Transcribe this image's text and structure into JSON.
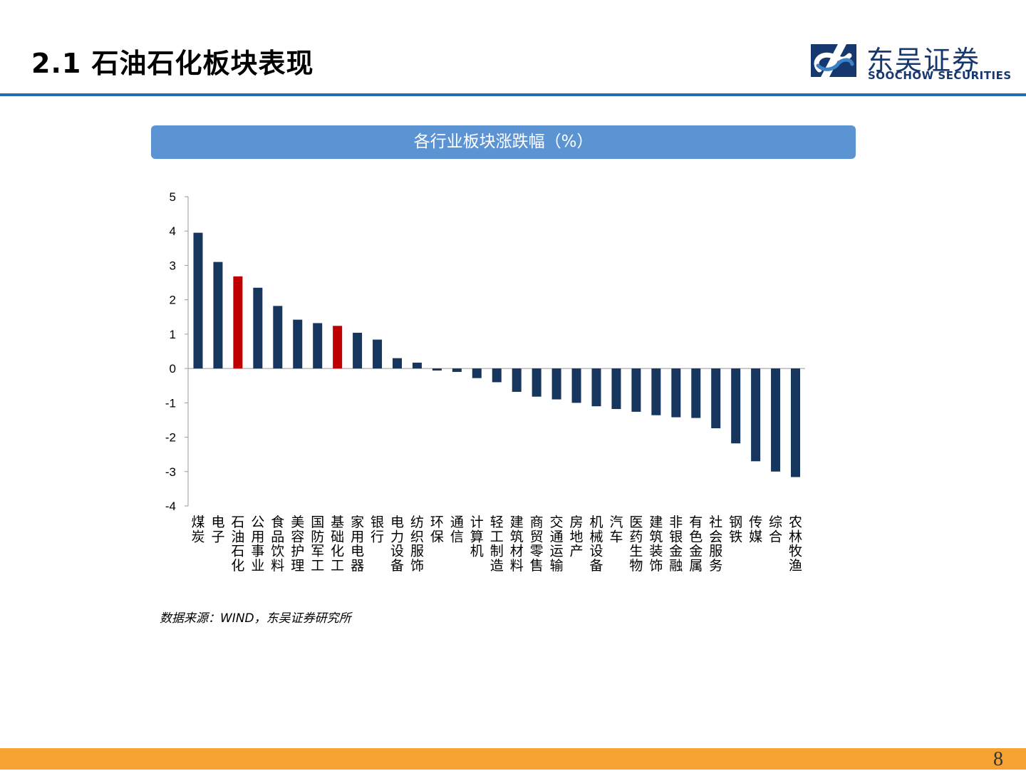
{
  "header": {
    "title": "2.1 石油石化板块表现",
    "logo_cn": "东吴证券",
    "logo_en": "SOOCHOW SECURITIES"
  },
  "chart_banner": "各行业板块涨跌幅（%）",
  "source": "数据来源：WIND，东吴证券研究所",
  "page_number": "8",
  "colors": {
    "bar": "#17365d",
    "highlight": "#c00000",
    "banner": "#5b93d3",
    "header_rule": "#1f6fb5",
    "footer": "#f7a334",
    "logo": "#17386e"
  },
  "chart_data": {
    "type": "bar",
    "categories": [
      "煤炭",
      "电子",
      "石油石化",
      "公用事业",
      "食品饮料",
      "美容护理",
      "国防军工",
      "基础化工",
      "家用电器",
      "银行",
      "电力设备",
      "纺织服饰",
      "环保",
      "通信",
      "计算机",
      "轻工制造",
      "建筑材料",
      "商贸零售",
      "交通运输",
      "房地产",
      "机械设备",
      "汽车",
      "医药生物",
      "建筑装饰",
      "非银金融",
      "有色金属",
      "社会服务",
      "钢铁",
      "传媒",
      "综合",
      "农林牧渔"
    ],
    "values": [
      3.95,
      3.1,
      2.68,
      2.35,
      1.82,
      1.42,
      1.32,
      1.24,
      1.04,
      0.84,
      0.3,
      0.17,
      -0.06,
      -0.1,
      -0.28,
      -0.4,
      -0.68,
      -0.82,
      -0.9,
      -1.0,
      -1.1,
      -1.18,
      -1.26,
      -1.36,
      -1.42,
      -1.44,
      -1.74,
      -2.18,
      -2.7,
      -3.0,
      -3.16
    ],
    "highlight": [
      "石油石化",
      "基础化工"
    ],
    "yticks": [
      5,
      4,
      3,
      2,
      1,
      0,
      -1,
      -2,
      -3,
      -4
    ],
    "ylim": [
      -4,
      5
    ],
    "xlabel": "",
    "ylabel": "",
    "legend": "none",
    "grid": false
  }
}
